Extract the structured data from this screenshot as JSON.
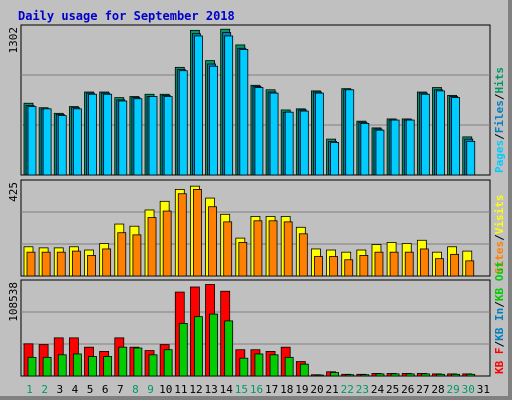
{
  "page": {
    "title": "Daily usage for September 2018"
  },
  "colors": {
    "background": "#c0c0c0",
    "title": "#0000cc",
    "pages": "#00ccff",
    "files": "#0080c0",
    "hits": "#009966",
    "visits": "#ffff00",
    "sites": "#ff8000",
    "kbin": "#0080c0",
    "kbout": "#00cc00",
    "kbf": "#ff0000",
    "kb_f_outline": "#660000",
    "weekend_label": "#009966",
    "weekday_label": "#000000"
  },
  "chart_data": [
    {
      "type": "bar",
      "panel": "hits-files-pages",
      "max_label": "1302",
      "ylim": [
        0,
        1302
      ],
      "legend": [
        "Pages",
        "Files",
        "Hits"
      ],
      "series": [
        {
          "name": "Hits",
          "values": [
            640,
            600,
            550,
            610,
            740,
            740,
            690,
            700,
            720,
            720,
            960,
            1290,
            1020,
            1300,
            1160,
            800,
            760,
            580,
            590,
            750,
            320,
            770,
            480,
            420,
            500,
            500,
            740,
            780,
            710,
            340,
            0
          ]
        },
        {
          "name": "Files",
          "values": [
            620,
            590,
            540,
            600,
            730,
            730,
            670,
            690,
            700,
            710,
            940,
            1260,
            990,
            1270,
            1130,
            790,
            740,
            560,
            580,
            740,
            300,
            760,
            470,
            410,
            490,
            490,
            730,
            760,
            700,
            320,
            0
          ]
        },
        {
          "name": "Pages",
          "values": [
            610,
            590,
            530,
            590,
            720,
            720,
            660,
            680,
            700,
            700,
            930,
            1240,
            970,
            1240,
            1120,
            780,
            730,
            560,
            570,
            730,
            290,
            760,
            460,
            400,
            490,
            490,
            720,
            750,
            690,
            300,
            0
          ]
        }
      ],
      "categories": [
        "1",
        "2",
        "3",
        "4",
        "5",
        "6",
        "7",
        "8",
        "9",
        "10",
        "11",
        "12",
        "13",
        "14",
        "15",
        "16",
        "17",
        "18",
        "19",
        "20",
        "21",
        "22",
        "23",
        "24",
        "25",
        "26",
        "27",
        "28",
        "29",
        "30",
        "31"
      ]
    },
    {
      "type": "bar",
      "panel": "visits-sites",
      "max_label": "425",
      "ylim": [
        0,
        425
      ],
      "legend": [
        "Visits",
        "Sites"
      ],
      "series": [
        {
          "name": "Visits",
          "values": [
            135,
            130,
            130,
            135,
            120,
            150,
            240,
            230,
            305,
            345,
            400,
            415,
            360,
            285,
            175,
            275,
            275,
            275,
            225,
            125,
            120,
            110,
            120,
            145,
            155,
            150,
            165,
            110,
            135,
            115,
            0
          ]
        },
        {
          "name": "Sites",
          "values": [
            110,
            110,
            110,
            115,
            95,
            125,
            200,
            190,
            270,
            300,
            380,
            400,
            320,
            250,
            155,
            255,
            255,
            250,
            195,
            90,
            90,
            75,
            95,
            110,
            110,
            110,
            125,
            80,
            100,
            70,
            0
          ]
        }
      ],
      "categories": [
        "1",
        "2",
        "3",
        "4",
        "5",
        "6",
        "7",
        "8",
        "9",
        "10",
        "11",
        "12",
        "13",
        "14",
        "15",
        "16",
        "17",
        "18",
        "19",
        "20",
        "21",
        "22",
        "23",
        "24",
        "25",
        "26",
        "27",
        "28",
        "29",
        "30",
        "31"
      ]
    },
    {
      "type": "bar",
      "panel": "kbytes",
      "max_label": "108538",
      "ylim": [
        0,
        108538
      ],
      "legend": [
        "KB F",
        "KB In",
        "KB Out"
      ],
      "series": [
        {
          "name": "KB F",
          "values": [
            38000,
            37000,
            45000,
            45000,
            34000,
            29000,
            45000,
            34000,
            30000,
            37000,
            99000,
            105000,
            108000,
            100000,
            31000,
            31000,
            29000,
            34000,
            17000,
            1500,
            5000,
            2000,
            2000,
            3000,
            3000,
            3000,
            3000,
            2500,
            2500,
            2500,
            0
          ]
        },
        {
          "name": "KB In",
          "values": [
            0,
            0,
            0,
            0,
            0,
            0,
            0,
            0,
            0,
            0,
            0,
            0,
            0,
            0,
            0,
            0,
            0,
            0,
            0,
            0,
            0,
            0,
            0,
            0,
            0,
            0,
            0,
            0,
            0,
            0,
            0
          ]
        },
        {
          "name": "KB Out",
          "values": [
            22000,
            22000,
            25000,
            26000,
            23000,
            23000,
            34000,
            33000,
            25000,
            31000,
            62000,
            70000,
            73000,
            65000,
            21000,
            26000,
            25000,
            22000,
            14000,
            1000,
            4000,
            1500,
            1500,
            2500,
            2500,
            2500,
            2500,
            2000,
            2000,
            2000,
            0
          ]
        }
      ],
      "categories": [
        "1",
        "2",
        "3",
        "4",
        "5",
        "6",
        "7",
        "8",
        "9",
        "10",
        "11",
        "12",
        "13",
        "14",
        "15",
        "16",
        "17",
        "18",
        "19",
        "20",
        "21",
        "22",
        "23",
        "24",
        "25",
        "26",
        "27",
        "28",
        "29",
        "30",
        "31"
      ]
    }
  ],
  "x_labels": [
    "1",
    "2",
    "3",
    "4",
    "5",
    "6",
    "7",
    "8",
    "9",
    "10",
    "11",
    "12",
    "13",
    "14",
    "15",
    "16",
    "17",
    "18",
    "19",
    "20",
    "21",
    "22",
    "23",
    "24",
    "25",
    "26",
    "27",
    "28",
    "29",
    "30",
    "31"
  ],
  "weekend_days": [
    1,
    2,
    8,
    9,
    15,
    16,
    22,
    23,
    29,
    30
  ]
}
